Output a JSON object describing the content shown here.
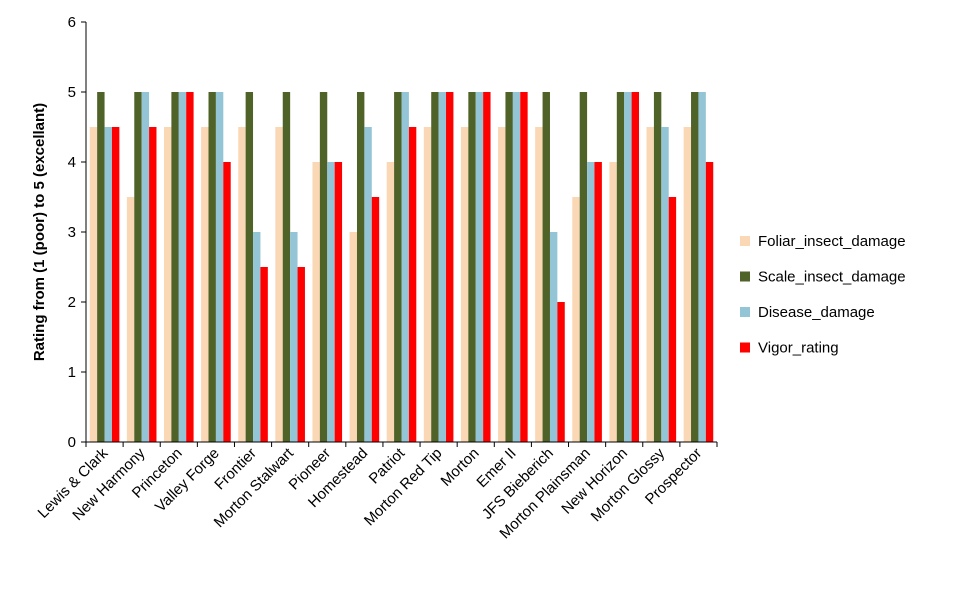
{
  "chart_data": {
    "type": "bar",
    "ylabel": "Rating  from (1 (poor) to 5 (excellant)",
    "ylim": [
      0,
      6
    ],
    "yticks": [
      0,
      1,
      2,
      3,
      4,
      5,
      6
    ],
    "grid": false,
    "legend_position": "right",
    "categories": [
      "Lewis & Clark",
      "New Harmony",
      "Princeton",
      "Valley Forge",
      "Frontier",
      "Morton Stalwart",
      "Pioneer",
      "Homestead",
      "Patriot",
      "Morton Red Tip",
      "Morton",
      "Emer II",
      "JFS Bieberich",
      "Morton Plainsman",
      "New Horizon",
      "Morton Glossy",
      "Prospector"
    ],
    "series": [
      {
        "name": "Foliar_insect_damage",
        "color": "#FAD7B5",
        "values": [
          4.5,
          3.5,
          4.5,
          4.5,
          4.5,
          4.5,
          4,
          3,
          4,
          4.5,
          4.5,
          4.5,
          4.5,
          3.5,
          4,
          4.5,
          4.5
        ]
      },
      {
        "name": "Scale_insect_damage",
        "color": "#4F6228",
        "values": [
          5,
          5,
          5,
          5,
          5,
          5,
          5,
          5,
          5,
          5,
          5,
          5,
          5,
          5,
          5,
          5,
          5
        ]
      },
      {
        "name": "Disease_damage",
        "color": "#93C5D6",
        "values": [
          4.5,
          5,
          5,
          5,
          3,
          3,
          4,
          4.5,
          5,
          5,
          5,
          5,
          3,
          4,
          5,
          4.5,
          5
        ]
      },
      {
        "name": "Vigor_rating",
        "color": "#FF0000",
        "values": [
          4.5,
          4.5,
          5,
          4,
          2.5,
          2.5,
          4,
          3.5,
          4.5,
          5,
          5,
          5,
          2,
          4,
          5,
          3.5,
          4
        ]
      }
    ]
  }
}
